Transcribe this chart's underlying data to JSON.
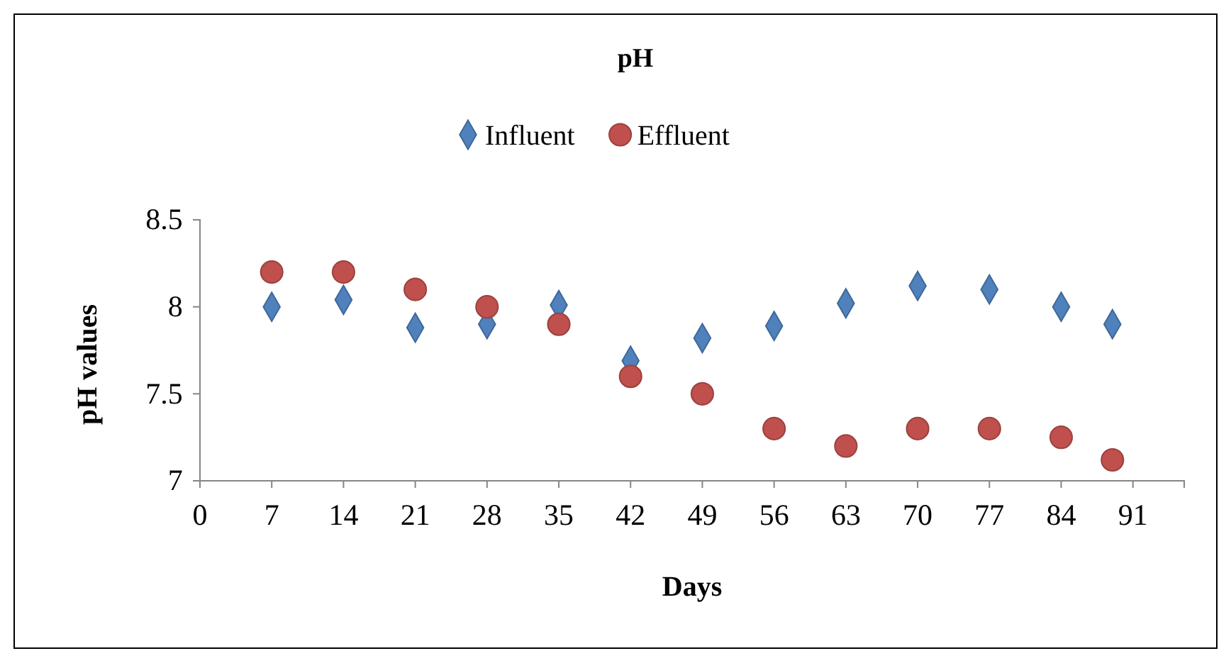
{
  "chart_data": {
    "type": "scatter",
    "title": "pH",
    "xlabel": "Days",
    "ylabel": "pH values",
    "x": [
      7,
      14,
      21,
      28,
      35,
      42,
      49,
      56,
      63,
      70,
      77,
      84,
      89
    ],
    "series": [
      {
        "name": "Influent",
        "color": "#4f81bd",
        "marker": "diamond",
        "values": [
          8.0,
          8.04,
          7.88,
          7.9,
          8.01,
          7.69,
          7.82,
          7.89,
          8.02,
          8.12,
          8.1,
          8.0,
          7.9
        ]
      },
      {
        "name": "Effluent",
        "color": "#c0504d",
        "marker": "circle",
        "values": [
          8.2,
          8.2,
          8.1,
          8.0,
          7.9,
          7.6,
          7.5,
          7.3,
          7.2,
          7.3,
          7.3,
          7.25,
          7.12
        ]
      }
    ],
    "xlim": [
      0,
      96
    ],
    "xticks": [
      0,
      7,
      14,
      21,
      28,
      35,
      42,
      49,
      56,
      63,
      70,
      77,
      84,
      91
    ],
    "ylim": [
      7,
      8.5
    ],
    "yticks": [
      7,
      7.5,
      8,
      8.5
    ],
    "grid": false,
    "legend": "top"
  }
}
